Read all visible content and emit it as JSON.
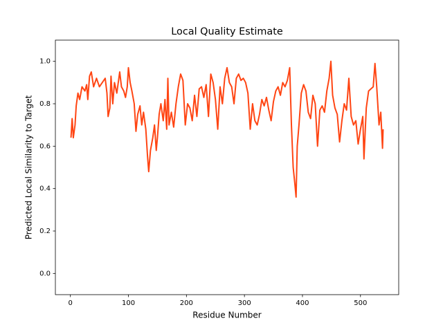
{
  "chart_data": {
    "type": "line",
    "title": "Local Quality Estimate",
    "xlabel": "Residue Number",
    "ylabel": "Predicted Local Similarity to Target",
    "xlim": [
      -25.9,
      565.9
    ],
    "ylim": [
      -0.1,
      1.1
    ],
    "xticks": [
      0,
      100,
      200,
      300,
      400,
      500
    ],
    "yticks": [
      {
        "value": 0,
        "label": "0.0"
      },
      0.2,
      0.4,
      0.6,
      0.8,
      {
        "value": 1,
        "label": "1.0"
      }
    ],
    "series": [
      {
        "color": "#ff4513",
        "x": [
          1,
          3,
          5,
          8,
          10,
          13,
          16,
          20,
          25,
          28,
          30,
          33,
          36,
          40,
          45,
          50,
          55,
          60,
          63,
          65,
          68,
          70,
          73,
          76,
          80,
          85,
          88,
          92,
          95,
          98,
          100,
          103,
          106,
          110,
          113,
          116,
          120,
          123,
          126,
          130,
          133,
          135,
          138,
          142,
          145,
          148,
          150,
          153,
          156,
          160,
          163,
          166,
          168,
          170,
          174,
          178,
          182,
          186,
          190,
          194,
          198,
          202,
          206,
          210,
          214,
          218,
          222,
          226,
          230,
          234,
          238,
          242,
          246,
          250,
          254,
          258,
          262,
          266,
          270,
          274,
          278,
          282,
          286,
          290,
          294,
          298,
          302,
          306,
          310,
          314,
          318,
          322,
          326,
          330,
          334,
          338,
          342,
          346,
          350,
          354,
          358,
          362,
          366,
          370,
          374,
          378,
          381,
          384,
          387,
          389,
          391,
          394,
          398,
          402,
          406,
          410,
          414,
          418,
          422,
          426,
          430,
          434,
          438,
          442,
          446,
          449,
          452,
          456,
          460,
          464,
          468,
          472,
          476,
          480,
          484,
          488,
          492,
          496,
          500,
          504,
          506,
          510,
          514,
          518,
          522,
          525,
          528,
          532,
          535,
          538,
          539
        ],
        "values": [
          0.64,
          0.73,
          0.64,
          0.7,
          0.79,
          0.85,
          0.82,
          0.88,
          0.86,
          0.89,
          0.82,
          0.93,
          0.95,
          0.88,
          0.92,
          0.88,
          0.9,
          0.92,
          0.85,
          0.74,
          0.78,
          0.93,
          0.8,
          0.9,
          0.85,
          0.95,
          0.88,
          0.86,
          0.83,
          0.88,
          0.97,
          0.9,
          0.86,
          0.8,
          0.67,
          0.75,
          0.79,
          0.7,
          0.76,
          0.68,
          0.55,
          0.48,
          0.58,
          0.64,
          0.7,
          0.58,
          0.64,
          0.75,
          0.8,
          0.72,
          0.82,
          0.68,
          0.92,
          0.7,
          0.76,
          0.69,
          0.8,
          0.88,
          0.94,
          0.91,
          0.7,
          0.8,
          0.78,
          0.72,
          0.84,
          0.74,
          0.87,
          0.88,
          0.83,
          0.89,
          0.74,
          0.94,
          0.9,
          0.82,
          0.68,
          0.88,
          0.8,
          0.92,
          0.97,
          0.9,
          0.88,
          0.8,
          0.92,
          0.94,
          0.91,
          0.92,
          0.9,
          0.85,
          0.68,
          0.8,
          0.72,
          0.7,
          0.75,
          0.82,
          0.79,
          0.83,
          0.77,
          0.72,
          0.81,
          0.86,
          0.88,
          0.84,
          0.9,
          0.88,
          0.91,
          0.97,
          0.7,
          0.5,
          0.42,
          0.36,
          0.6,
          0.7,
          0.85,
          0.89,
          0.86,
          0.76,
          0.73,
          0.84,
          0.8,
          0.6,
          0.77,
          0.79,
          0.76,
          0.86,
          0.92,
          1.0,
          0.84,
          0.78,
          0.75,
          0.62,
          0.72,
          0.8,
          0.77,
          0.92,
          0.74,
          0.7,
          0.72,
          0.61,
          0.68,
          0.74,
          0.54,
          0.78,
          0.86,
          0.87,
          0.88,
          0.99,
          0.88,
          0.7,
          0.76,
          0.59,
          0.68
        ]
      }
    ]
  }
}
